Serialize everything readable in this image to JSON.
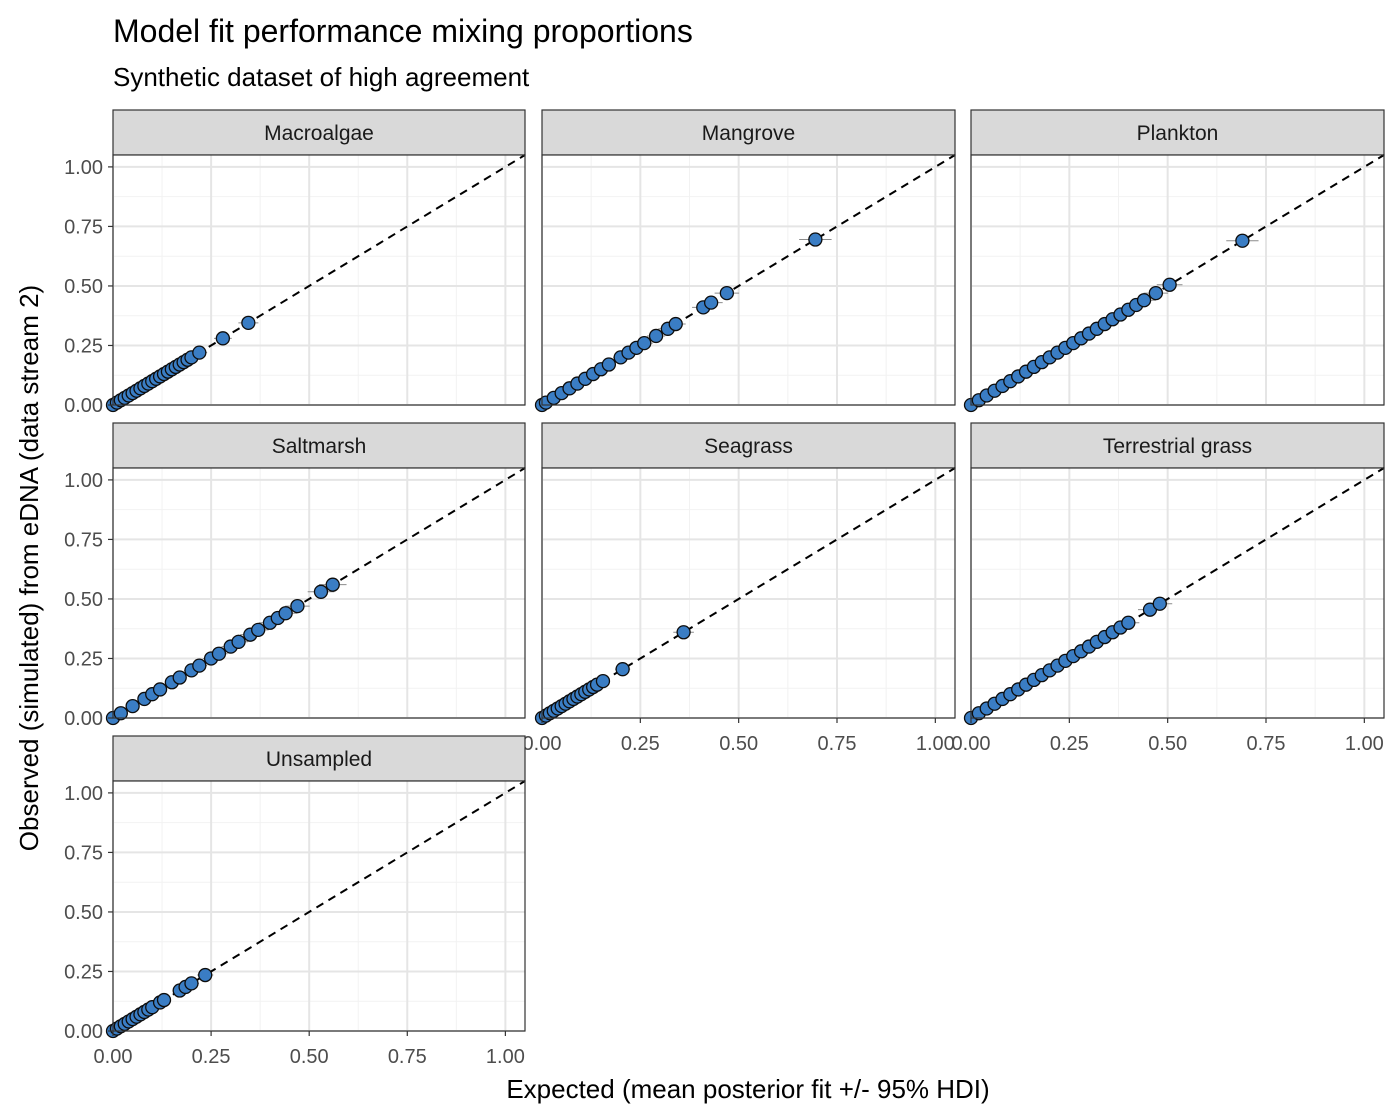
{
  "title": "Model fit performance mixing proportions",
  "subtitle": "Synthetic dataset of high agreement",
  "xlabel": "Expected (mean posterior fit +/- 95% HDI)",
  "ylabel": "Observed (simulated) from eDNA (data stream 2)",
  "colors": {
    "point_fill": "#3a7dc4",
    "point_stroke": "#0d0d0d",
    "strip_fill": "#d9d9d9",
    "panel_border": "#333333",
    "grid_major": "#e5e5e5",
    "grid_minor": "#f2f2f2",
    "reference_line": "#000000",
    "errorbar": "#8c8c8c"
  },
  "chart_data": {
    "type": "scatter",
    "layout": "facet_wrap 3 columns",
    "xlim": [
      0,
      1.05
    ],
    "ylim": [
      0,
      1.05
    ],
    "ticks": [
      0,
      0.25,
      0.5,
      0.75,
      1.0
    ],
    "tick_labels": [
      "0.00",
      "0.25",
      "0.50",
      "0.75",
      "1.00"
    ],
    "reference_line": "y = x (dashed)",
    "grid": true,
    "panels": [
      {
        "name": "Macroalgae",
        "points": [
          [
            0,
            0
          ],
          [
            0.01,
            0.01
          ],
          [
            0.02,
            0.02
          ],
          [
            0.03,
            0.03
          ],
          [
            0.04,
            0.04
          ],
          [
            0.05,
            0.05
          ],
          [
            0.06,
            0.06
          ],
          [
            0.07,
            0.07
          ],
          [
            0.08,
            0.08
          ],
          [
            0.09,
            0.09
          ],
          [
            0.1,
            0.1
          ],
          [
            0.11,
            0.11
          ],
          [
            0.12,
            0.12
          ],
          [
            0.13,
            0.13
          ],
          [
            0.14,
            0.14
          ],
          [
            0.15,
            0.15
          ],
          [
            0.16,
            0.16
          ],
          [
            0.17,
            0.17
          ],
          [
            0.18,
            0.18
          ],
          [
            0.19,
            0.19
          ],
          [
            0.2,
            0.2
          ],
          [
            0.22,
            0.22
          ],
          [
            0.28,
            0.28
          ],
          [
            0.345,
            0.345
          ]
        ]
      },
      {
        "name": "Mangrove",
        "points": [
          [
            0,
            0
          ],
          [
            0.01,
            0.01
          ],
          [
            0.03,
            0.03
          ],
          [
            0.05,
            0.05
          ],
          [
            0.07,
            0.07
          ],
          [
            0.09,
            0.09
          ],
          [
            0.11,
            0.11
          ],
          [
            0.13,
            0.13
          ],
          [
            0.15,
            0.15
          ],
          [
            0.17,
            0.17
          ],
          [
            0.2,
            0.2
          ],
          [
            0.22,
            0.22
          ],
          [
            0.24,
            0.24
          ],
          [
            0.26,
            0.26
          ],
          [
            0.29,
            0.29
          ],
          [
            0.32,
            0.32
          ],
          [
            0.34,
            0.34
          ],
          [
            0.41,
            0.41
          ],
          [
            0.43,
            0.43
          ],
          [
            0.47,
            0.47
          ],
          [
            0.695,
            0.695
          ]
        ]
      },
      {
        "name": "Plankton",
        "points": [
          [
            0,
            0
          ],
          [
            0.02,
            0.02
          ],
          [
            0.04,
            0.04
          ],
          [
            0.06,
            0.06
          ],
          [
            0.08,
            0.08
          ],
          [
            0.1,
            0.1
          ],
          [
            0.12,
            0.12
          ],
          [
            0.14,
            0.14
          ],
          [
            0.16,
            0.16
          ],
          [
            0.18,
            0.18
          ],
          [
            0.2,
            0.2
          ],
          [
            0.22,
            0.22
          ],
          [
            0.24,
            0.24
          ],
          [
            0.26,
            0.26
          ],
          [
            0.28,
            0.28
          ],
          [
            0.3,
            0.3
          ],
          [
            0.32,
            0.32
          ],
          [
            0.34,
            0.34
          ],
          [
            0.36,
            0.36
          ],
          [
            0.38,
            0.38
          ],
          [
            0.4,
            0.4
          ],
          [
            0.42,
            0.42
          ],
          [
            0.44,
            0.44
          ],
          [
            0.47,
            0.47
          ],
          [
            0.505,
            0.505
          ],
          [
            0.69,
            0.69
          ]
        ]
      },
      {
        "name": "Saltmarsh",
        "points": [
          [
            0,
            0
          ],
          [
            0.02,
            0.02
          ],
          [
            0.05,
            0.05
          ],
          [
            0.08,
            0.08
          ],
          [
            0.1,
            0.1
          ],
          [
            0.12,
            0.12
          ],
          [
            0.15,
            0.15
          ],
          [
            0.17,
            0.17
          ],
          [
            0.2,
            0.2
          ],
          [
            0.22,
            0.22
          ],
          [
            0.25,
            0.25
          ],
          [
            0.27,
            0.27
          ],
          [
            0.3,
            0.3
          ],
          [
            0.32,
            0.32
          ],
          [
            0.35,
            0.35
          ],
          [
            0.37,
            0.37
          ],
          [
            0.4,
            0.4
          ],
          [
            0.42,
            0.42
          ],
          [
            0.44,
            0.44
          ],
          [
            0.47,
            0.47
          ],
          [
            0.53,
            0.53
          ],
          [
            0.56,
            0.56
          ]
        ]
      },
      {
        "name": "Seagrass",
        "points": [
          [
            0,
            0
          ],
          [
            0.01,
            0.01
          ],
          [
            0.02,
            0.02
          ],
          [
            0.03,
            0.03
          ],
          [
            0.04,
            0.04
          ],
          [
            0.05,
            0.05
          ],
          [
            0.06,
            0.06
          ],
          [
            0.07,
            0.07
          ],
          [
            0.08,
            0.08
          ],
          [
            0.09,
            0.09
          ],
          [
            0.1,
            0.1
          ],
          [
            0.11,
            0.11
          ],
          [
            0.12,
            0.12
          ],
          [
            0.13,
            0.13
          ],
          [
            0.14,
            0.14
          ],
          [
            0.155,
            0.155
          ],
          [
            0.205,
            0.205
          ],
          [
            0.36,
            0.36
          ]
        ]
      },
      {
        "name": "Terrestrial grass",
        "points": [
          [
            0,
            0
          ],
          [
            0.02,
            0.02
          ],
          [
            0.04,
            0.04
          ],
          [
            0.06,
            0.06
          ],
          [
            0.08,
            0.08
          ],
          [
            0.1,
            0.1
          ],
          [
            0.12,
            0.12
          ],
          [
            0.14,
            0.14
          ],
          [
            0.16,
            0.16
          ],
          [
            0.18,
            0.18
          ],
          [
            0.2,
            0.2
          ],
          [
            0.22,
            0.22
          ],
          [
            0.24,
            0.24
          ],
          [
            0.26,
            0.26
          ],
          [
            0.28,
            0.28
          ],
          [
            0.3,
            0.3
          ],
          [
            0.32,
            0.32
          ],
          [
            0.34,
            0.34
          ],
          [
            0.36,
            0.36
          ],
          [
            0.38,
            0.38
          ],
          [
            0.4,
            0.4
          ],
          [
            0.455,
            0.455
          ],
          [
            0.48,
            0.48
          ]
        ]
      },
      {
        "name": "Unsampled",
        "points": [
          [
            0,
            0
          ],
          [
            0.01,
            0.01
          ],
          [
            0.02,
            0.02
          ],
          [
            0.03,
            0.03
          ],
          [
            0.04,
            0.04
          ],
          [
            0.05,
            0.05
          ],
          [
            0.06,
            0.06
          ],
          [
            0.07,
            0.07
          ],
          [
            0.08,
            0.08
          ],
          [
            0.09,
            0.09
          ],
          [
            0.1,
            0.1
          ],
          [
            0.12,
            0.12
          ],
          [
            0.13,
            0.13
          ],
          [
            0.17,
            0.17
          ],
          [
            0.185,
            0.185
          ],
          [
            0.2,
            0.2
          ],
          [
            0.235,
            0.235
          ]
        ]
      }
    ]
  }
}
